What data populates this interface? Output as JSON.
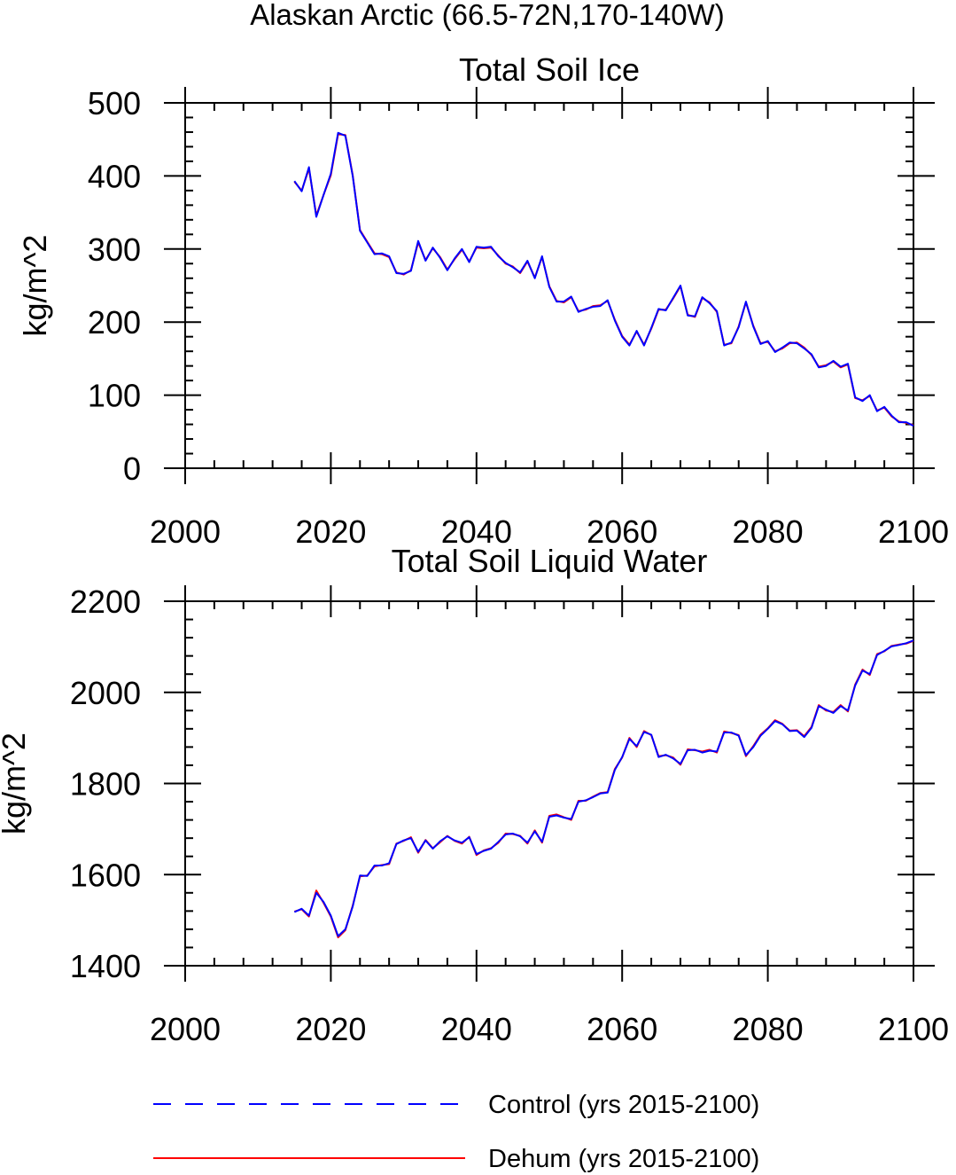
{
  "suptitle": "Alaskan Arctic (66.5-72N,170-140W)",
  "legend": {
    "control_label": "Control (yrs 2015-2100)",
    "dehum_label": "Dehum (yrs 2015-2100)"
  },
  "colors": {
    "control": "#0000ff",
    "dehum": "#ff0000",
    "axis": "#000000"
  },
  "chart_data": [
    {
      "type": "line",
      "title": "Total Soil Ice",
      "xlabel": "",
      "ylabel": "kg/m^2",
      "xlim": [
        2000,
        2100
      ],
      "ylim": [
        0,
        500
      ],
      "xticks": [
        2000,
        2020,
        2040,
        2060,
        2080,
        2100
      ],
      "yticks": [
        0,
        100,
        200,
        300,
        400,
        500
      ],
      "grid": false,
      "x": [
        2015,
        2016,
        2017,
        2018,
        2019,
        2020,
        2021,
        2022,
        2023,
        2024,
        2025,
        2026,
        2027,
        2028,
        2029,
        2030,
        2031,
        2032,
        2033,
        2034,
        2035,
        2036,
        2037,
        2038,
        2039,
        2040,
        2041,
        2042,
        2043,
        2044,
        2045,
        2046,
        2047,
        2048,
        2049,
        2050,
        2051,
        2052,
        2053,
        2054,
        2055,
        2056,
        2057,
        2058,
        2059,
        2060,
        2061,
        2062,
        2063,
        2064,
        2065,
        2066,
        2067,
        2068,
        2069,
        2070,
        2071,
        2072,
        2073,
        2074,
        2075,
        2076,
        2077,
        2078,
        2079,
        2080,
        2081,
        2082,
        2083,
        2084,
        2085,
        2086,
        2087,
        2088,
        2089,
        2090,
        2091,
        2092,
        2093,
        2094,
        2095,
        2096,
        2097,
        2098,
        2099,
        2100
      ],
      "series": [
        {
          "name": "Control (yrs 2015-2100)",
          "style": "dashed",
          "values": [
            393,
            379,
            412,
            344,
            374,
            403,
            459,
            455,
            400,
            325,
            309,
            293,
            294,
            290,
            267,
            266,
            270,
            311,
            284,
            302,
            288,
            271,
            287,
            300,
            282,
            303,
            302,
            303,
            290,
            281,
            275,
            268,
            284,
            260,
            290,
            248,
            228,
            228,
            235,
            214,
            218,
            221,
            222,
            230,
            202,
            180,
            168,
            188,
            168,
            192,
            218,
            216,
            233,
            250,
            209,
            208,
            234,
            226,
            215,
            168,
            172,
            193,
            228,
            194,
            170,
            174,
            159,
            165,
            172,
            171,
            164,
            156,
            138,
            140,
            147,
            139,
            143,
            97,
            92,
            100,
            78,
            84,
            72,
            63,
            63,
            58
          ]
        },
        {
          "name": "Dehum (yrs 2015-2100)",
          "style": "solid",
          "values": [
            392,
            380,
            410,
            346,
            374,
            401,
            457,
            456,
            401,
            326,
            310,
            294,
            293,
            289,
            268,
            265,
            271,
            309,
            285,
            301,
            289,
            272,
            286,
            299,
            283,
            302,
            301,
            302,
            291,
            280,
            276,
            267,
            283,
            261,
            289,
            249,
            229,
            227,
            234,
            215,
            217,
            222,
            223,
            229,
            203,
            181,
            169,
            187,
            169,
            191,
            217,
            217,
            232,
            249,
            210,
            207,
            233,
            227,
            214,
            169,
            171,
            194,
            227,
            195,
            171,
            173,
            160,
            164,
            171,
            172,
            165,
            155,
            139,
            141,
            146,
            138,
            142,
            96,
            93,
            99,
            79,
            83,
            71,
            64,
            62,
            59
          ]
        }
      ]
    },
    {
      "type": "line",
      "title": "Total Soil Liquid Water",
      "xlabel": "",
      "ylabel": "kg/m^2",
      "xlim": [
        2000,
        2100
      ],
      "ylim": [
        1400,
        2200
      ],
      "xticks": [
        2000,
        2020,
        2040,
        2060,
        2080,
        2100
      ],
      "yticks": [
        1400,
        1600,
        1800,
        2000,
        2200
      ],
      "grid": false,
      "x": [
        2015,
        2016,
        2017,
        2018,
        2019,
        2020,
        2021,
        2022,
        2023,
        2024,
        2025,
        2026,
        2027,
        2028,
        2029,
        2030,
        2031,
        2032,
        2033,
        2034,
        2035,
        2036,
        2037,
        2038,
        2039,
        2040,
        2041,
        2042,
        2043,
        2044,
        2045,
        2046,
        2047,
        2048,
        2049,
        2050,
        2051,
        2052,
        2053,
        2054,
        2055,
        2056,
        2057,
        2058,
        2059,
        2060,
        2061,
        2062,
        2063,
        2064,
        2065,
        2066,
        2067,
        2068,
        2069,
        2070,
        2071,
        2072,
        2073,
        2074,
        2075,
        2076,
        2077,
        2078,
        2079,
        2080,
        2081,
        2082,
        2083,
        2084,
        2085,
        2086,
        2087,
        2088,
        2089,
        2090,
        2091,
        2092,
        2093,
        2094,
        2095,
        2096,
        2097,
        2098,
        2099,
        2100
      ],
      "series": [
        {
          "name": "Control (yrs 2015-2100)",
          "style": "dashed",
          "values": [
            1518,
            1525,
            1510,
            1560,
            1540,
            1510,
            1465,
            1480,
            1530,
            1598,
            1597,
            1620,
            1620,
            1625,
            1667,
            1675,
            1680,
            1650,
            1675,
            1657,
            1673,
            1684,
            1675,
            1670,
            1682,
            1645,
            1652,
            1657,
            1672,
            1688,
            1690,
            1684,
            1670,
            1695,
            1672,
            1727,
            1730,
            1725,
            1722,
            1760,
            1763,
            1770,
            1778,
            1780,
            1830,
            1858,
            1898,
            1882,
            1913,
            1907,
            1858,
            1863,
            1855,
            1843,
            1873,
            1874,
            1868,
            1872,
            1870,
            1912,
            1912,
            1905,
            1862,
            1880,
            1905,
            1920,
            1937,
            1930,
            1915,
            1916,
            1902,
            1922,
            1970,
            1962,
            1955,
            1970,
            1960,
            2015,
            2048,
            2040,
            2082,
            2091,
            2101,
            2104,
            2108,
            2114
          ]
        },
        {
          "name": "Dehum (yrs 2015-2100)",
          "style": "solid",
          "values": [
            1519,
            1524,
            1508,
            1565,
            1538,
            1508,
            1462,
            1478,
            1532,
            1596,
            1598,
            1618,
            1621,
            1623,
            1668,
            1674,
            1682,
            1648,
            1676,
            1658,
            1671,
            1685,
            1674,
            1668,
            1683,
            1643,
            1653,
            1658,
            1670,
            1690,
            1689,
            1685,
            1668,
            1697,
            1670,
            1729,
            1732,
            1726,
            1720,
            1762,
            1762,
            1771,
            1779,
            1781,
            1832,
            1857,
            1900,
            1880,
            1915,
            1906,
            1860,
            1862,
            1857,
            1841,
            1875,
            1873,
            1870,
            1874,
            1868,
            1914,
            1911,
            1906,
            1860,
            1882,
            1907,
            1921,
            1939,
            1931,
            1916,
            1917,
            1904,
            1924,
            1972,
            1960,
            1957,
            1972,
            1958,
            2017,
            2050,
            2038,
            2084,
            2090,
            2102,
            2105,
            2107,
            2113
          ]
        }
      ]
    }
  ]
}
